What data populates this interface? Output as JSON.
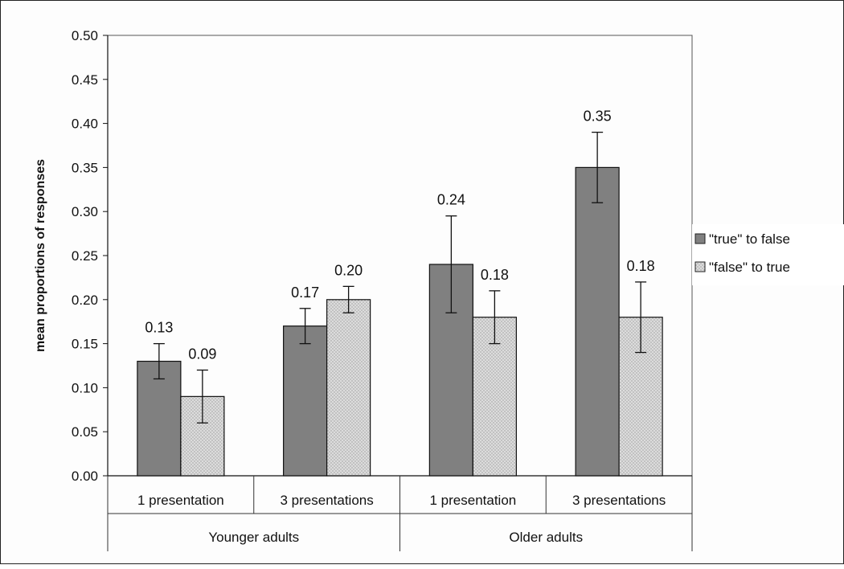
{
  "chart_data": {
    "type": "bar",
    "title": "",
    "xlabel": "",
    "ylabel": "mean proportions of responses",
    "ylim": [
      0,
      0.5
    ],
    "ytick_step": 0.05,
    "yticks": [
      "0.00",
      "0.05",
      "0.10",
      "0.15",
      "0.20",
      "0.25",
      "0.30",
      "0.35",
      "0.40",
      "0.45",
      "0.50"
    ],
    "grid": false,
    "legend_position": "right",
    "groups": [
      {
        "label": "Younger adults",
        "categories": [
          "1 presentation",
          "3 presentations"
        ]
      },
      {
        "label": "Older adults",
        "categories": [
          "1 presentation",
          "3 presentations"
        ]
      }
    ],
    "categories": [
      "1 presentation",
      "3 presentations",
      "1 presentation",
      "3 presentations"
    ],
    "series": [
      {
        "name": "\"true\" to false",
        "color": "#808080",
        "pattern": "solid",
        "values": [
          0.13,
          0.17,
          0.24,
          0.35
        ],
        "value_labels": [
          "0.13",
          "0.17",
          "0.24",
          "0.35"
        ],
        "error_low": [
          0.11,
          0.15,
          0.185,
          0.31
        ],
        "error_high": [
          0.15,
          0.19,
          0.295,
          0.39
        ]
      },
      {
        "name": "\"false\" to true",
        "color": "#d6d6d6",
        "pattern": "dotted",
        "values": [
          0.09,
          0.2,
          0.18,
          0.18
        ],
        "value_labels": [
          "0.09",
          "0.20",
          "0.18",
          "0.18"
        ],
        "error_low": [
          0.06,
          0.185,
          0.15,
          0.14
        ],
        "error_high": [
          0.12,
          0.215,
          0.21,
          0.22
        ]
      }
    ]
  }
}
